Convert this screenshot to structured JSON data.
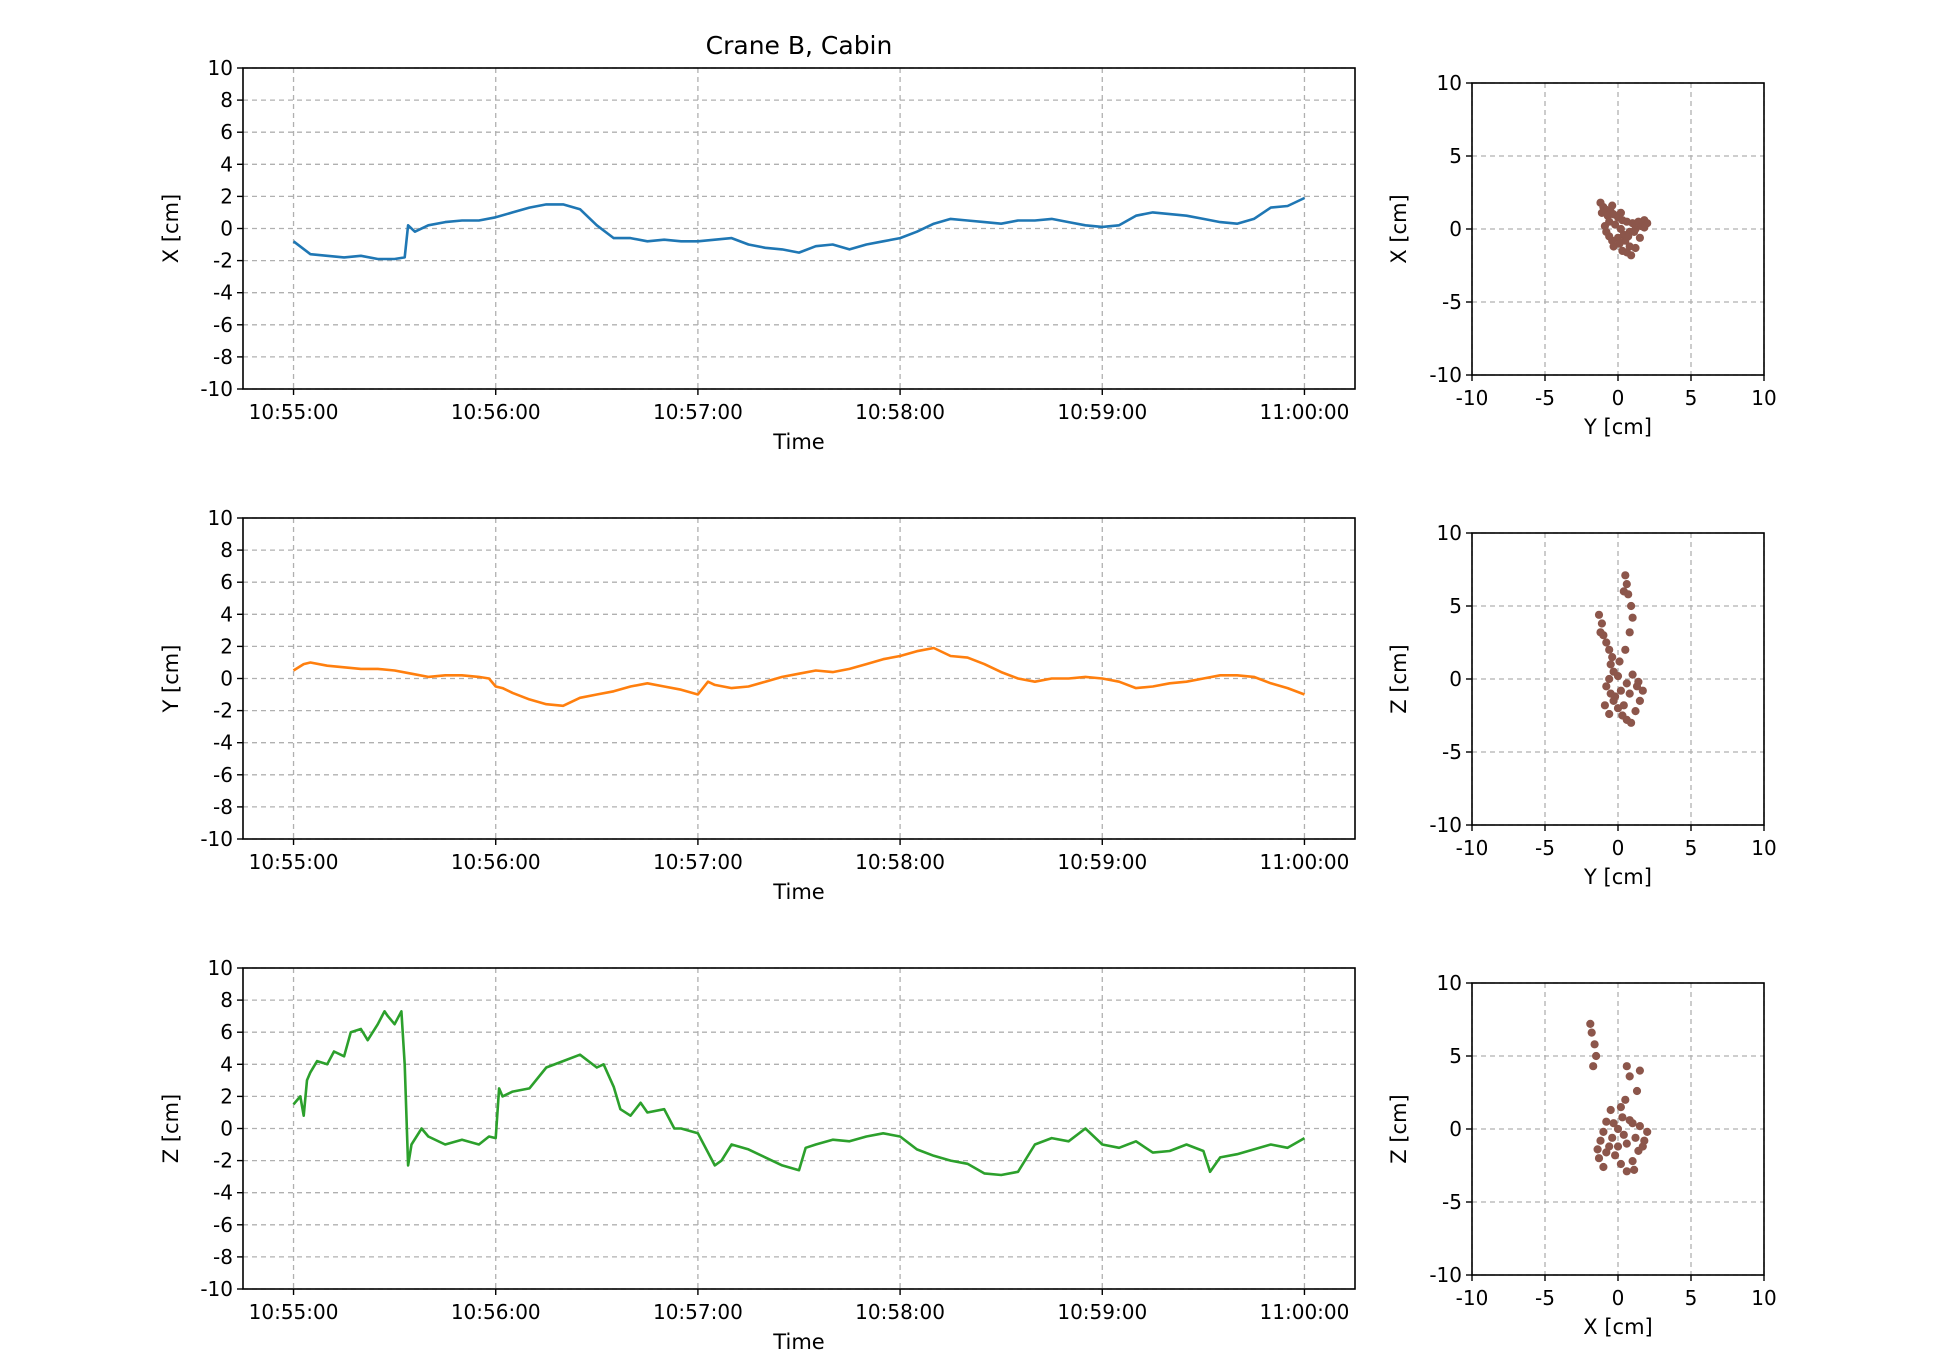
{
  "chart_data": [
    {
      "type": "line",
      "title": "Crane B, Cabin",
      "xlabel": "Time",
      "ylabel": "X [cm]",
      "ylim": [
        -10,
        10
      ],
      "yticks": [
        -10,
        -8,
        -6,
        -4,
        -2,
        0,
        2,
        4,
        6,
        8,
        10
      ],
      "xlim_seconds": [
        -15,
        315
      ],
      "xticks": [
        "10:55:00",
        "10:56:00",
        "10:57:00",
        "10:58:00",
        "10:59:00",
        "11:00:00"
      ],
      "grid": true,
      "color": "#1f77b4",
      "series": [
        {
          "x_seconds": [
            0,
            5,
            10,
            15,
            20,
            25,
            30,
            33,
            34,
            36,
            40,
            45,
            50,
            55,
            60,
            65,
            70,
            75,
            80,
            85,
            90,
            95,
            100,
            105,
            110,
            115,
            120,
            125,
            130,
            135,
            140,
            145,
            150,
            155,
            160,
            165,
            170,
            175,
            180,
            185,
            190,
            195,
            200,
            205,
            210,
            215,
            220,
            225,
            230,
            235,
            240,
            245,
            250,
            255,
            260,
            265,
            270,
            275,
            280,
            285,
            290,
            295,
            300
          ],
          "y": [
            -0.8,
            -1.6,
            -1.7,
            -1.8,
            -1.7,
            -1.9,
            -1.9,
            -1.8,
            0.2,
            -0.2,
            0.2,
            0.4,
            0.5,
            0.5,
            0.7,
            1.0,
            1.3,
            1.5,
            1.5,
            1.2,
            0.2,
            -0.6,
            -0.6,
            -0.8,
            -0.7,
            -0.8,
            -0.8,
            -0.7,
            -0.6,
            -1.0,
            -1.2,
            -1.3,
            -1.5,
            -1.1,
            -1.0,
            -1.3,
            -1.0,
            -0.8,
            -0.6,
            -0.2,
            0.3,
            0.6,
            0.5,
            0.4,
            0.3,
            0.5,
            0.5,
            0.6,
            0.4,
            0.2,
            0.1,
            0.2,
            0.8,
            1.0,
            0.9,
            0.8,
            0.6,
            0.4,
            0.3,
            0.6,
            1.3,
            1.4,
            1.9
          ]
        }
      ]
    },
    {
      "type": "scatter",
      "xlabel": "Y [cm]",
      "ylabel": "X [cm]",
      "xlim": [
        -10,
        10
      ],
      "ylim": [
        -10,
        10
      ],
      "xticks": [
        -10,
        -5,
        0,
        5,
        10
      ],
      "yticks": [
        -10,
        -5,
        0,
        5,
        10
      ],
      "grid": true,
      "color": "#8c564b",
      "points": [
        [
          -1.2,
          1.8
        ],
        [
          -1.0,
          1.5
        ],
        [
          -0.8,
          1.3
        ],
        [
          -0.5,
          1.2
        ],
        [
          -0.3,
          1.0
        ],
        [
          0.0,
          0.8
        ],
        [
          0.3,
          0.6
        ],
        [
          0.6,
          0.5
        ],
        [
          1.0,
          0.4
        ],
        [
          1.4,
          0.5
        ],
        [
          1.8,
          0.6
        ],
        [
          2.0,
          0.4
        ],
        [
          1.6,
          0.2
        ],
        [
          1.2,
          0.0
        ],
        [
          0.8,
          -0.2
        ],
        [
          0.4,
          -0.4
        ],
        [
          0.0,
          -0.6
        ],
        [
          -0.4,
          -0.8
        ],
        [
          -0.6,
          -0.5
        ],
        [
          -0.8,
          -0.2
        ],
        [
          -0.9,
          0.2
        ],
        [
          -0.6,
          0.5
        ],
        [
          -0.2,
          0.3
        ],
        [
          0.2,
          0.0
        ],
        [
          0.5,
          -0.8
        ],
        [
          0.8,
          -1.2
        ],
        [
          0.6,
          -1.6
        ],
        [
          0.9,
          -1.8
        ],
        [
          1.2,
          -1.3
        ],
        [
          1.5,
          -0.6
        ],
        [
          1.8,
          0.1
        ],
        [
          0.1,
          -1.0
        ],
        [
          -0.3,
          -1.2
        ],
        [
          0.3,
          -1.5
        ],
        [
          0.7,
          -0.5
        ],
        [
          1.1,
          -0.2
        ],
        [
          -0.7,
          0.9
        ],
        [
          -1.1,
          1.1
        ],
        [
          -0.4,
          1.6
        ],
        [
          0.2,
          1.1
        ]
      ]
    },
    {
      "type": "line",
      "xlabel": "Time",
      "ylabel": "Y [cm]",
      "ylim": [
        -10,
        10
      ],
      "yticks": [
        -10,
        -8,
        -6,
        -4,
        -2,
        0,
        2,
        4,
        6,
        8,
        10
      ],
      "xlim_seconds": [
        -15,
        315
      ],
      "xticks": [
        "10:55:00",
        "10:56:00",
        "10:57:00",
        "10:58:00",
        "10:59:00",
        "11:00:00"
      ],
      "grid": true,
      "color": "#ff7f0e",
      "series": [
        {
          "x_seconds": [
            0,
            3,
            5,
            10,
            15,
            20,
            25,
            30,
            35,
            40,
            45,
            50,
            55,
            58,
            60,
            62,
            65,
            70,
            75,
            80,
            85,
            90,
            95,
            100,
            105,
            110,
            115,
            120,
            123,
            125,
            130,
            135,
            140,
            145,
            150,
            155,
            160,
            165,
            170,
            175,
            180,
            185,
            190,
            195,
            200,
            205,
            210,
            215,
            220,
            225,
            230,
            235,
            240,
            245,
            250,
            255,
            260,
            265,
            270,
            275,
            280,
            285,
            290,
            295,
            300
          ],
          "y": [
            0.5,
            0.9,
            1.0,
            0.8,
            0.7,
            0.6,
            0.6,
            0.5,
            0.3,
            0.1,
            0.2,
            0.2,
            0.1,
            0.0,
            -0.5,
            -0.6,
            -0.9,
            -1.3,
            -1.6,
            -1.7,
            -1.2,
            -1.0,
            -0.8,
            -0.5,
            -0.3,
            -0.5,
            -0.7,
            -1.0,
            -0.2,
            -0.4,
            -0.6,
            -0.5,
            -0.2,
            0.1,
            0.3,
            0.5,
            0.4,
            0.6,
            0.9,
            1.2,
            1.4,
            1.7,
            1.9,
            1.4,
            1.3,
            0.9,
            0.4,
            0.0,
            -0.2,
            0.0,
            0.0,
            0.1,
            0.0,
            -0.2,
            -0.6,
            -0.5,
            -0.3,
            -0.2,
            0.0,
            0.2,
            0.2,
            0.1,
            -0.3,
            -0.6,
            -1.0
          ]
        }
      ]
    },
    {
      "type": "scatter",
      "xlabel": "Y [cm]",
      "ylabel": "Z [cm]",
      "xlim": [
        -10,
        10
      ],
      "ylim": [
        -10,
        10
      ],
      "xticks": [
        -10,
        -5,
        0,
        5,
        10
      ],
      "yticks": [
        -10,
        -5,
        0,
        5,
        10
      ],
      "grid": true,
      "color": "#8c564b",
      "points": [
        [
          0.5,
          7.1
        ],
        [
          0.6,
          6.5
        ],
        [
          0.7,
          5.8
        ],
        [
          0.9,
          5.0
        ],
        [
          0.4,
          6.0
        ],
        [
          -1.3,
          4.4
        ],
        [
          -1.1,
          3.8
        ],
        [
          -1.0,
          3.0
        ],
        [
          -0.8,
          2.5
        ],
        [
          -0.6,
          2.0
        ],
        [
          -0.4,
          1.5
        ],
        [
          -0.5,
          1.0
        ],
        [
          -0.3,
          0.5
        ],
        [
          -0.6,
          0.0
        ],
        [
          -0.8,
          -0.5
        ],
        [
          -0.5,
          -1.0
        ],
        [
          -0.3,
          -1.5
        ],
        [
          0.0,
          -2.0
        ],
        [
          0.3,
          -2.5
        ],
        [
          0.6,
          -2.8
        ],
        [
          0.9,
          -3.0
        ],
        [
          1.2,
          -2.2
        ],
        [
          1.5,
          -1.5
        ],
        [
          1.7,
          -0.8
        ],
        [
          1.4,
          -0.2
        ],
        [
          1.0,
          0.3
        ],
        [
          0.6,
          -0.3
        ],
        [
          0.2,
          -0.8
        ],
        [
          -0.2,
          -1.2
        ],
        [
          0.4,
          -1.8
        ],
        [
          0.8,
          -1.0
        ],
        [
          1.3,
          -0.5
        ],
        [
          0.0,
          0.2
        ],
        [
          -0.9,
          -1.8
        ],
        [
          -0.6,
          -2.4
        ],
        [
          0.1,
          1.2
        ],
        [
          0.5,
          2.0
        ],
        [
          0.8,
          3.2
        ],
        [
          1.0,
          4.2
        ],
        [
          -1.2,
          3.2
        ]
      ]
    },
    {
      "type": "line",
      "xlabel": "Time",
      "ylabel": "Z [cm]",
      "ylim": [
        -10,
        10
      ],
      "yticks": [
        -10,
        -8,
        -6,
        -4,
        -2,
        0,
        2,
        4,
        6,
        8,
        10
      ],
      "xlim_seconds": [
        -15,
        315
      ],
      "xticks": [
        "10:55:00",
        "10:56:00",
        "10:57:00",
        "10:58:00",
        "10:59:00",
        "11:00:00"
      ],
      "grid": true,
      "color": "#2ca02c",
      "series": [
        {
          "x_seconds": [
            0,
            2,
            3,
            4,
            5,
            7,
            10,
            12,
            15,
            17,
            20,
            22,
            25,
            27,
            28,
            30,
            32,
            33,
            34,
            35,
            38,
            40,
            45,
            50,
            55,
            58,
            60,
            61,
            62,
            65,
            70,
            75,
            80,
            85,
            90,
            92,
            95,
            97,
            100,
            103,
            105,
            110,
            113,
            115,
            120,
            125,
            127,
            130,
            135,
            140,
            145,
            150,
            152,
            155,
            160,
            165,
            170,
            175,
            180,
            185,
            190,
            195,
            200,
            205,
            210,
            215,
            220,
            225,
            230,
            235,
            240,
            245,
            250,
            255,
            260,
            265,
            270,
            272,
            275,
            280,
            285,
            290,
            295,
            300
          ],
          "y": [
            1.5,
            2.0,
            0.8,
            3.0,
            3.5,
            4.2,
            4.0,
            4.8,
            4.5,
            6.0,
            6.2,
            5.5,
            6.5,
            7.3,
            7.0,
            6.5,
            7.3,
            4.0,
            -2.3,
            -1.0,
            0.0,
            -0.5,
            -1.0,
            -0.7,
            -1.0,
            -0.5,
            -0.6,
            2.5,
            2.0,
            2.3,
            2.5,
            3.8,
            4.2,
            4.6,
            3.8,
            4.0,
            2.6,
            1.2,
            0.8,
            1.6,
            1.0,
            1.2,
            0.0,
            0.0,
            -0.3,
            -2.3,
            -2.0,
            -1.0,
            -1.3,
            -1.8,
            -2.3,
            -2.6,
            -1.2,
            -1.0,
            -0.7,
            -0.8,
            -0.5,
            -0.3,
            -0.5,
            -1.3,
            -1.7,
            -2.0,
            -2.2,
            -2.8,
            -2.9,
            -2.7,
            -1.0,
            -0.6,
            -0.8,
            0.0,
            -1.0,
            -1.2,
            -0.8,
            -1.5,
            -1.4,
            -1.0,
            -1.4,
            -2.7,
            -1.8,
            -1.6,
            -1.3,
            -1.0,
            -1.2,
            -0.6
          ]
        }
      ]
    },
    {
      "type": "scatter",
      "xlabel": "X [cm]",
      "ylabel": "Z [cm]",
      "xlim": [
        -10,
        10
      ],
      "ylim": [
        -10,
        10
      ],
      "xticks": [
        -10,
        -5,
        0,
        5,
        10
      ],
      "yticks": [
        -10,
        -5,
        0,
        5,
        10
      ],
      "grid": true,
      "color": "#8c564b",
      "points": [
        [
          -1.9,
          7.2
        ],
        [
          -1.8,
          6.6
        ],
        [
          -1.6,
          5.8
        ],
        [
          -1.5,
          5.0
        ],
        [
          -1.7,
          4.3
        ],
        [
          0.6,
          4.3
        ],
        [
          0.8,
          3.6
        ],
        [
          1.3,
          2.6
        ],
        [
          1.5,
          4.0
        ],
        [
          0.5,
          2.0
        ],
        [
          0.2,
          1.5
        ],
        [
          -0.5,
          1.3
        ],
        [
          -0.8,
          0.5
        ],
        [
          -1.0,
          -0.2
        ],
        [
          -1.2,
          -0.8
        ],
        [
          -0.6,
          -1.2
        ],
        [
          -0.2,
          -1.8
        ],
        [
          -1.3,
          -2.0
        ],
        [
          -1.0,
          -2.6
        ],
        [
          0.2,
          -2.4
        ],
        [
          0.6,
          -2.9
        ],
        [
          1.0,
          -2.2
        ],
        [
          1.4,
          -1.5
        ],
        [
          1.8,
          -0.8
        ],
        [
          2.0,
          -0.2
        ],
        [
          1.5,
          0.2
        ],
        [
          1.0,
          0.4
        ],
        [
          0.4,
          -0.4
        ],
        [
          0.0,
          0.0
        ],
        [
          -0.4,
          -0.6
        ],
        [
          0.6,
          -1.0
        ],
        [
          1.2,
          -0.6
        ],
        [
          -0.8,
          -1.6
        ],
        [
          0.0,
          -1.2
        ],
        [
          0.8,
          0.6
        ],
        [
          1.7,
          -1.2
        ],
        [
          -1.4,
          -1.4
        ],
        [
          0.3,
          0.8
        ],
        [
          -0.3,
          0.4
        ],
        [
          1.1,
          -2.8
        ]
      ]
    }
  ]
}
